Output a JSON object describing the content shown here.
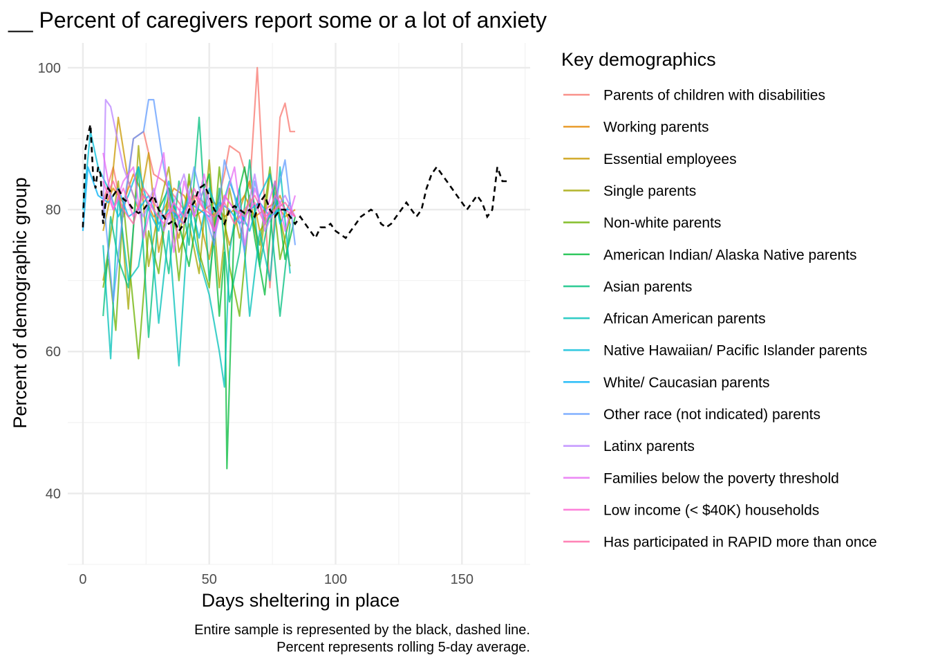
{
  "chart_data": {
    "type": "line",
    "title": "__ Percent of caregivers report some or a lot of anxiety",
    "xlabel": "Days sheltering in place",
    "ylabel": "Percent of demographic group",
    "xlim": [
      -6,
      177
    ],
    "ylim": [
      30,
      103.5
    ],
    "x_ticks": [
      0,
      50,
      100,
      150
    ],
    "y_ticks": [
      40,
      60,
      80,
      100
    ],
    "grid": true,
    "legend": {
      "title": "Key demographics",
      "position": "right"
    },
    "captions": [
      "Entire sample is represented by the black, dashed line.",
      "Percent represents rolling 5-day average."
    ],
    "overall": {
      "name": "Entire sample",
      "style": "black dashed",
      "x": [
        0,
        1,
        2,
        3,
        4,
        5,
        6,
        7,
        8,
        9,
        10,
        12,
        14,
        16,
        18,
        20,
        22,
        24,
        26,
        28,
        30,
        32,
        34,
        36,
        38,
        40,
        42,
        44,
        46,
        48,
        50,
        52,
        54,
        56,
        58,
        60,
        62,
        64,
        66,
        68,
        70,
        72,
        74,
        76,
        78,
        80,
        82,
        84,
        86,
        88,
        90,
        92,
        94,
        96,
        98,
        100,
        102,
        104,
        106,
        108,
        110,
        112,
        114,
        116,
        118,
        120,
        122,
        124,
        126,
        128,
        130,
        132,
        134,
        136,
        138,
        140,
        142,
        144,
        146,
        148,
        150,
        152,
        154,
        156,
        158,
        160,
        162,
        164,
        166,
        168
      ],
      "values": [
        77.5,
        88.5,
        90.5,
        92,
        85,
        83,
        86,
        85,
        78,
        81,
        83,
        82,
        83,
        81.5,
        81,
        80,
        79.5,
        80,
        81,
        82,
        80,
        79,
        78,
        78.5,
        77,
        78,
        80,
        81,
        83,
        83.5,
        82,
        80,
        79,
        78,
        80,
        80.5,
        80,
        79.5,
        80,
        79,
        81,
        82,
        80,
        79,
        80,
        80,
        79,
        78,
        79,
        78,
        77,
        76,
        77.5,
        77.5,
        78,
        77,
        76.5,
        76,
        77,
        78,
        79,
        79.5,
        80,
        79.5,
        78,
        77.5,
        78,
        79,
        80,
        81,
        80,
        79,
        80,
        83,
        85,
        86,
        85,
        84,
        83,
        82,
        81,
        80,
        81,
        82,
        81,
        79,
        80,
        86,
        84,
        84
      ]
    },
    "series": [
      {
        "name": "Parents of children with disabilities",
        "color": "#F8766D",
        "x": [
          8,
          12,
          16,
          20,
          24,
          28,
          32,
          36,
          40,
          44,
          48,
          52,
          56,
          58,
          62,
          66,
          69,
          72,
          74,
          76,
          78,
          80,
          82,
          84
        ],
        "values": [
          81,
          86,
          79,
          90,
          91,
          85,
          84,
          82,
          80,
          82,
          81,
          79,
          85,
          89,
          88,
          83,
          100,
          80,
          69,
          80,
          93,
          95,
          91,
          91
        ]
      },
      {
        "name": "Working parents",
        "color": "#E58700",
        "x": [
          8,
          12,
          16,
          20,
          24,
          28,
          32,
          36,
          40,
          44,
          48,
          52,
          56,
          60,
          64,
          68,
          72,
          76,
          80,
          84
        ],
        "values": [
          80,
          83,
          81,
          85,
          82,
          79,
          80,
          83,
          82,
          79,
          80,
          81,
          79,
          80,
          82,
          79,
          80,
          81,
          79,
          80
        ]
      },
      {
        "name": "Essential employees",
        "color": "#C99800",
        "x": [
          8,
          11,
          14,
          18,
          22,
          26,
          30,
          34,
          38,
          42,
          46,
          50,
          54,
          58,
          62,
          66,
          70,
          74,
          78,
          82
        ],
        "values": [
          77,
          82,
          93,
          84,
          80,
          88,
          74,
          81,
          76,
          84,
          79,
          73,
          81,
          75,
          80,
          84,
          77,
          79,
          82,
          78
        ]
      },
      {
        "name": "Single parents",
        "color": "#A3A500",
        "x": [
          8,
          10,
          14,
          18,
          22,
          26,
          30,
          34,
          38,
          42,
          46,
          50,
          54,
          58,
          62,
          66,
          70,
          74,
          78,
          82
        ],
        "values": [
          70,
          74,
          84,
          66,
          89,
          72,
          80,
          86,
          74,
          78,
          71,
          87,
          69,
          83,
          76,
          82,
          73,
          85,
          79,
          72
        ]
      },
      {
        "name": "Non-white parents",
        "color": "#6BB100",
        "x": [
          8,
          10,
          13,
          16,
          19,
          22,
          26,
          30,
          34,
          38,
          42,
          46,
          50,
          54,
          58,
          62,
          66,
          70,
          74,
          78,
          82
        ],
        "values": [
          69,
          73,
          63,
          81,
          70,
          59,
          77,
          71,
          83,
          70,
          85,
          74,
          69,
          86,
          72,
          65,
          80,
          75,
          86,
          73,
          79
        ]
      },
      {
        "name": "American Indian/ Alaska Native parents",
        "color": "#00BA38",
        "x": [
          30,
          34,
          38,
          42,
          46,
          50,
          54,
          56,
          57,
          60,
          64,
          68,
          72,
          76,
          80,
          84
        ],
        "values": [
          80,
          83,
          78,
          72,
          81,
          85,
          65,
          74,
          43.5,
          80,
          86,
          76,
          68,
          84,
          73,
          79
        ]
      },
      {
        "name": "Asian parents",
        "color": "#00BF7D",
        "x": [
          8,
          11,
          14,
          18,
          22,
          26,
          30,
          34,
          38,
          42,
          46,
          50,
          54,
          58,
          62,
          66,
          70,
          74,
          78,
          82
        ],
        "values": [
          65,
          79,
          73,
          69,
          86,
          62,
          80,
          71,
          84,
          75,
          93,
          70,
          83,
          67,
          74,
          87,
          72,
          80,
          65,
          78
        ]
      },
      {
        "name": "African American parents",
        "color": "#00C0B8",
        "x": [
          8,
          11,
          14,
          18,
          22,
          26,
          30,
          34,
          38,
          42,
          46,
          50,
          54,
          56,
          58,
          62,
          66,
          70,
          74,
          78,
          82
        ],
        "values": [
          75,
          59,
          82,
          70,
          72,
          81,
          64,
          77,
          58,
          80,
          73,
          68,
          60,
          55,
          74,
          83,
          65,
          77,
          70,
          86,
          71
        ]
      },
      {
        "name": "Native Hawaiian/ Pacific Islander parents",
        "color": "#00BCD8",
        "x": [
          0,
          3,
          6,
          10,
          14,
          18,
          22,
          26,
          30,
          34,
          38,
          42,
          46,
          50,
          54,
          58,
          62,
          66,
          70,
          74,
          78,
          82
        ],
        "values": [
          80,
          91,
          86,
          83,
          79,
          82,
          86,
          80,
          77,
          84,
          78,
          82,
          76,
          83,
          79,
          84,
          80,
          77,
          82,
          85,
          78,
          81
        ]
      },
      {
        "name": "White/ Caucasian parents",
        "color": "#00B0F6",
        "x": [
          0,
          2,
          4,
          6,
          10,
          14,
          18,
          22,
          26,
          30,
          34,
          38,
          42,
          46,
          50,
          54,
          58,
          62,
          66,
          70,
          74,
          78,
          82
        ],
        "values": [
          77,
          86,
          84,
          82,
          81,
          83,
          79,
          80,
          82,
          78,
          80,
          79,
          81,
          80,
          79,
          81,
          80,
          78,
          80,
          81,
          79,
          80,
          80
        ]
      },
      {
        "name": "Other race (not indicated) parents",
        "color": "#619CFF",
        "x": [
          8,
          12,
          16,
          20,
          24,
          26,
          28,
          32,
          36,
          40,
          44,
          48,
          52,
          56,
          60,
          64,
          68,
          72,
          76,
          80,
          84
        ],
        "values": [
          82,
          67,
          80,
          90,
          91,
          95.5,
          95.5,
          86,
          79,
          78,
          86,
          80,
          75,
          87,
          82,
          74,
          84,
          78,
          81,
          87,
          75
        ]
      },
      {
        "name": "Latinx parents",
        "color": "#B983FF",
        "x": [
          8,
          9,
          11,
          13,
          16,
          20,
          24,
          28,
          32,
          36,
          40,
          44,
          48,
          52,
          56,
          60,
          64,
          68,
          72,
          76,
          80,
          84
        ],
        "values": [
          79,
          95.5,
          94.5,
          91,
          86,
          82,
          79,
          83,
          77,
          81,
          85,
          79,
          83,
          76,
          82,
          80,
          78,
          85,
          77,
          80,
          82,
          79
        ]
      },
      {
        "name": "Families below the poverty threshold",
        "color": "#E76BF3",
        "x": [
          8,
          12,
          16,
          20,
          24,
          28,
          32,
          36,
          40,
          44,
          48,
          52,
          56,
          60,
          64,
          68,
          72,
          76,
          80,
          84
        ],
        "values": [
          88,
          80,
          84,
          86,
          76,
          82,
          88,
          74,
          84,
          79,
          85,
          77,
          81,
          86,
          75,
          83,
          79,
          84,
          77,
          82
        ]
      },
      {
        "name": "Low income (< $40K) households",
        "color": "#FD61D1",
        "x": [
          8,
          12,
          16,
          20,
          24,
          28,
          32,
          36,
          40,
          44,
          48,
          52,
          56,
          60,
          64,
          68,
          72,
          76,
          80,
          84
        ],
        "values": [
          84,
          80,
          83,
          79,
          82,
          80,
          78,
          81,
          79,
          83,
          80,
          77,
          82,
          80,
          79,
          81,
          78,
          82,
          80,
          79
        ]
      },
      {
        "name": "Has participated in RAPID more than once",
        "color": "#FF67A4",
        "x": [
          8,
          12,
          16,
          20,
          24,
          28,
          32,
          36,
          40,
          44,
          48,
          52,
          56,
          60,
          64,
          68,
          72,
          76,
          80,
          84
        ],
        "values": [
          81,
          84,
          80,
          78,
          83,
          81,
          79,
          80,
          78,
          82,
          80,
          79,
          81,
          78,
          80,
          82,
          79,
          80,
          81,
          79
        ]
      }
    ]
  }
}
